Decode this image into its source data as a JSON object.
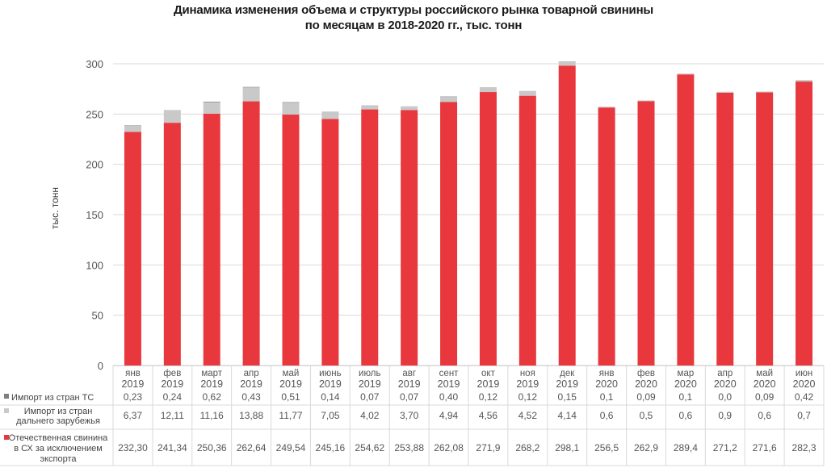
{
  "chart_data": {
    "type": "bar",
    "stacked": true,
    "title": "Динамика изменения объема и структуры российского рынка товарной свинины",
    "subtitle": "по месяцам в 2018-2020 гг., тыс. тонн",
    "ylabel": "тыс. тонн",
    "xlabel": "",
    "ylim": [
      0,
      300
    ],
    "yticks": [
      "0",
      "50",
      "100",
      "150",
      "200",
      "250",
      "300"
    ],
    "grid": true,
    "legend": "table-bottom",
    "categories": [
      {
        "month": "янв",
        "year": "2019"
      },
      {
        "month": "фев",
        "year": "2019"
      },
      {
        "month": "март",
        "year": "2019"
      },
      {
        "month": "апр",
        "year": "2019"
      },
      {
        "month": "май",
        "year": "2019"
      },
      {
        "month": "июнь",
        "year": "2019"
      },
      {
        "month": "июль",
        "year": "2019"
      },
      {
        "month": "авг",
        "year": "2019"
      },
      {
        "month": "сент",
        "year": "2019"
      },
      {
        "month": "окт",
        "year": "2019"
      },
      {
        "month": "ноя",
        "year": "2019"
      },
      {
        "month": "дек",
        "year": "2019"
      },
      {
        "month": "янв",
        "year": "2020"
      },
      {
        "month": "фев",
        "year": "2020"
      },
      {
        "month": "мар",
        "year": "2020"
      },
      {
        "month": "апр",
        "year": "2020"
      },
      {
        "month": "май",
        "year": "2020"
      },
      {
        "month": "июн",
        "year": "2020"
      }
    ],
    "series": [
      {
        "name": "Импорт из стран ТС",
        "label_lines": [
          "Импорт из стран ТС"
        ],
        "color": "#7f7f7f",
        "values": [
          0.23,
          0.24,
          0.62,
          0.43,
          0.51,
          0.14,
          0.07,
          0.07,
          0.4,
          0.12,
          0.12,
          0.15,
          0.1,
          0.09,
          0.1,
          0.0,
          0.09,
          0.42
        ],
        "labels": [
          "0,23",
          "0,24",
          "0,62",
          "0,43",
          "0,51",
          "0,14",
          "0,07",
          "0,07",
          "0,40",
          "0,12",
          "0,12",
          "0,15",
          "0,1",
          "0,09",
          "0,1",
          "0,0",
          "0,09",
          "0,42"
        ]
      },
      {
        "name": "Импорт из стран дальнего зарубежья",
        "label_lines": [
          "Импорт из стран",
          "дальнего зарубежья"
        ],
        "color": "#c9c9c9",
        "values": [
          6.37,
          12.11,
          11.16,
          13.88,
          11.77,
          7.05,
          4.02,
          3.7,
          4.94,
          4.56,
          4.52,
          4.14,
          0.6,
          0.5,
          0.6,
          0.9,
          0.6,
          0.7
        ],
        "labels": [
          "6,37",
          "12,11",
          "11,16",
          "13,88",
          "11,77",
          "7,05",
          "4,02",
          "3,70",
          "4,94",
          "4,56",
          "4,52",
          "4,14",
          "0,6",
          "0,5",
          "0,6",
          "0,9",
          "0,6",
          "0,7"
        ]
      },
      {
        "name": "Отечественная свинина в СХ за исключением экспорта",
        "label_lines": [
          "Отечественная свинина",
          "в СХ за исключением",
          "экспорта"
        ],
        "color": "#e8383d",
        "values": [
          232.3,
          241.34,
          250.36,
          262.64,
          249.54,
          245.16,
          254.62,
          253.88,
          262.08,
          271.9,
          268.2,
          298.1,
          256.5,
          262.9,
          289.4,
          271.2,
          271.6,
          282.3
        ],
        "labels": [
          "232,30",
          "241,34",
          "250,36",
          "262,64",
          "249,54",
          "245,16",
          "254,62",
          "253,88",
          "262,08",
          "271,9",
          "268,2",
          "298,1",
          "256,5",
          "262,9",
          "289,4",
          "271,2",
          "271,6",
          "282,3"
        ]
      }
    ]
  }
}
